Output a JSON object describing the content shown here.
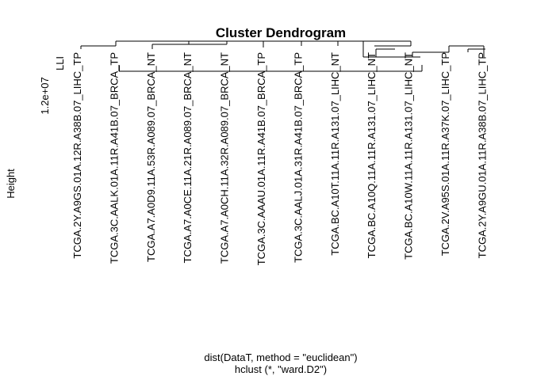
{
  "chart_data": {
    "type": "dendrogram",
    "title": "Cluster Dendrogram",
    "ylabel": "Height",
    "xlabel": "dist(DataT, method = \"euclidean\")",
    "sub": "hclust (*, \"ward.D2\")",
    "y_tick_label": "1.2e+07",
    "y_axis_mark": "LLI",
    "leaves": [
      "TCGA.2Y.A9GS.01A.12R.A38B.07_LIHC_TP",
      "TCGA.3C.AALK.01A.11R.A41B.07_BRCA_TP",
      "TCGA.A7.A0D9.11A.53R.A089.07_BRCA_NT",
      "TCGA.A7.A0CE.11A.21R.A089.07_BRCA_NT",
      "TCGA.A7.A0CH.11A.32R.A089.07_BRCA_NT",
      "TCGA.3C.AAAU.01A.11R.A41B.07_BRCA_TP",
      "TCGA.3C.AALJ.01A.31R.A41B.07_BRCA_TP",
      "TCGA.BC.A10T.11A.11R.A131.07_LIHC_NT",
      "TCGA.BC.A10Q.11A.11R.A131.07_LIHC_NT",
      "TCGA.BC.A10W.11A.11R.A131.07_LIHC_NT",
      "TCGA.2V.A95S.01A.11R.A37K.07_LIHC_TP",
      "TCGA.2Y.A9GU.01A.11R.A38B.07_LIHC_TP"
    ]
  }
}
